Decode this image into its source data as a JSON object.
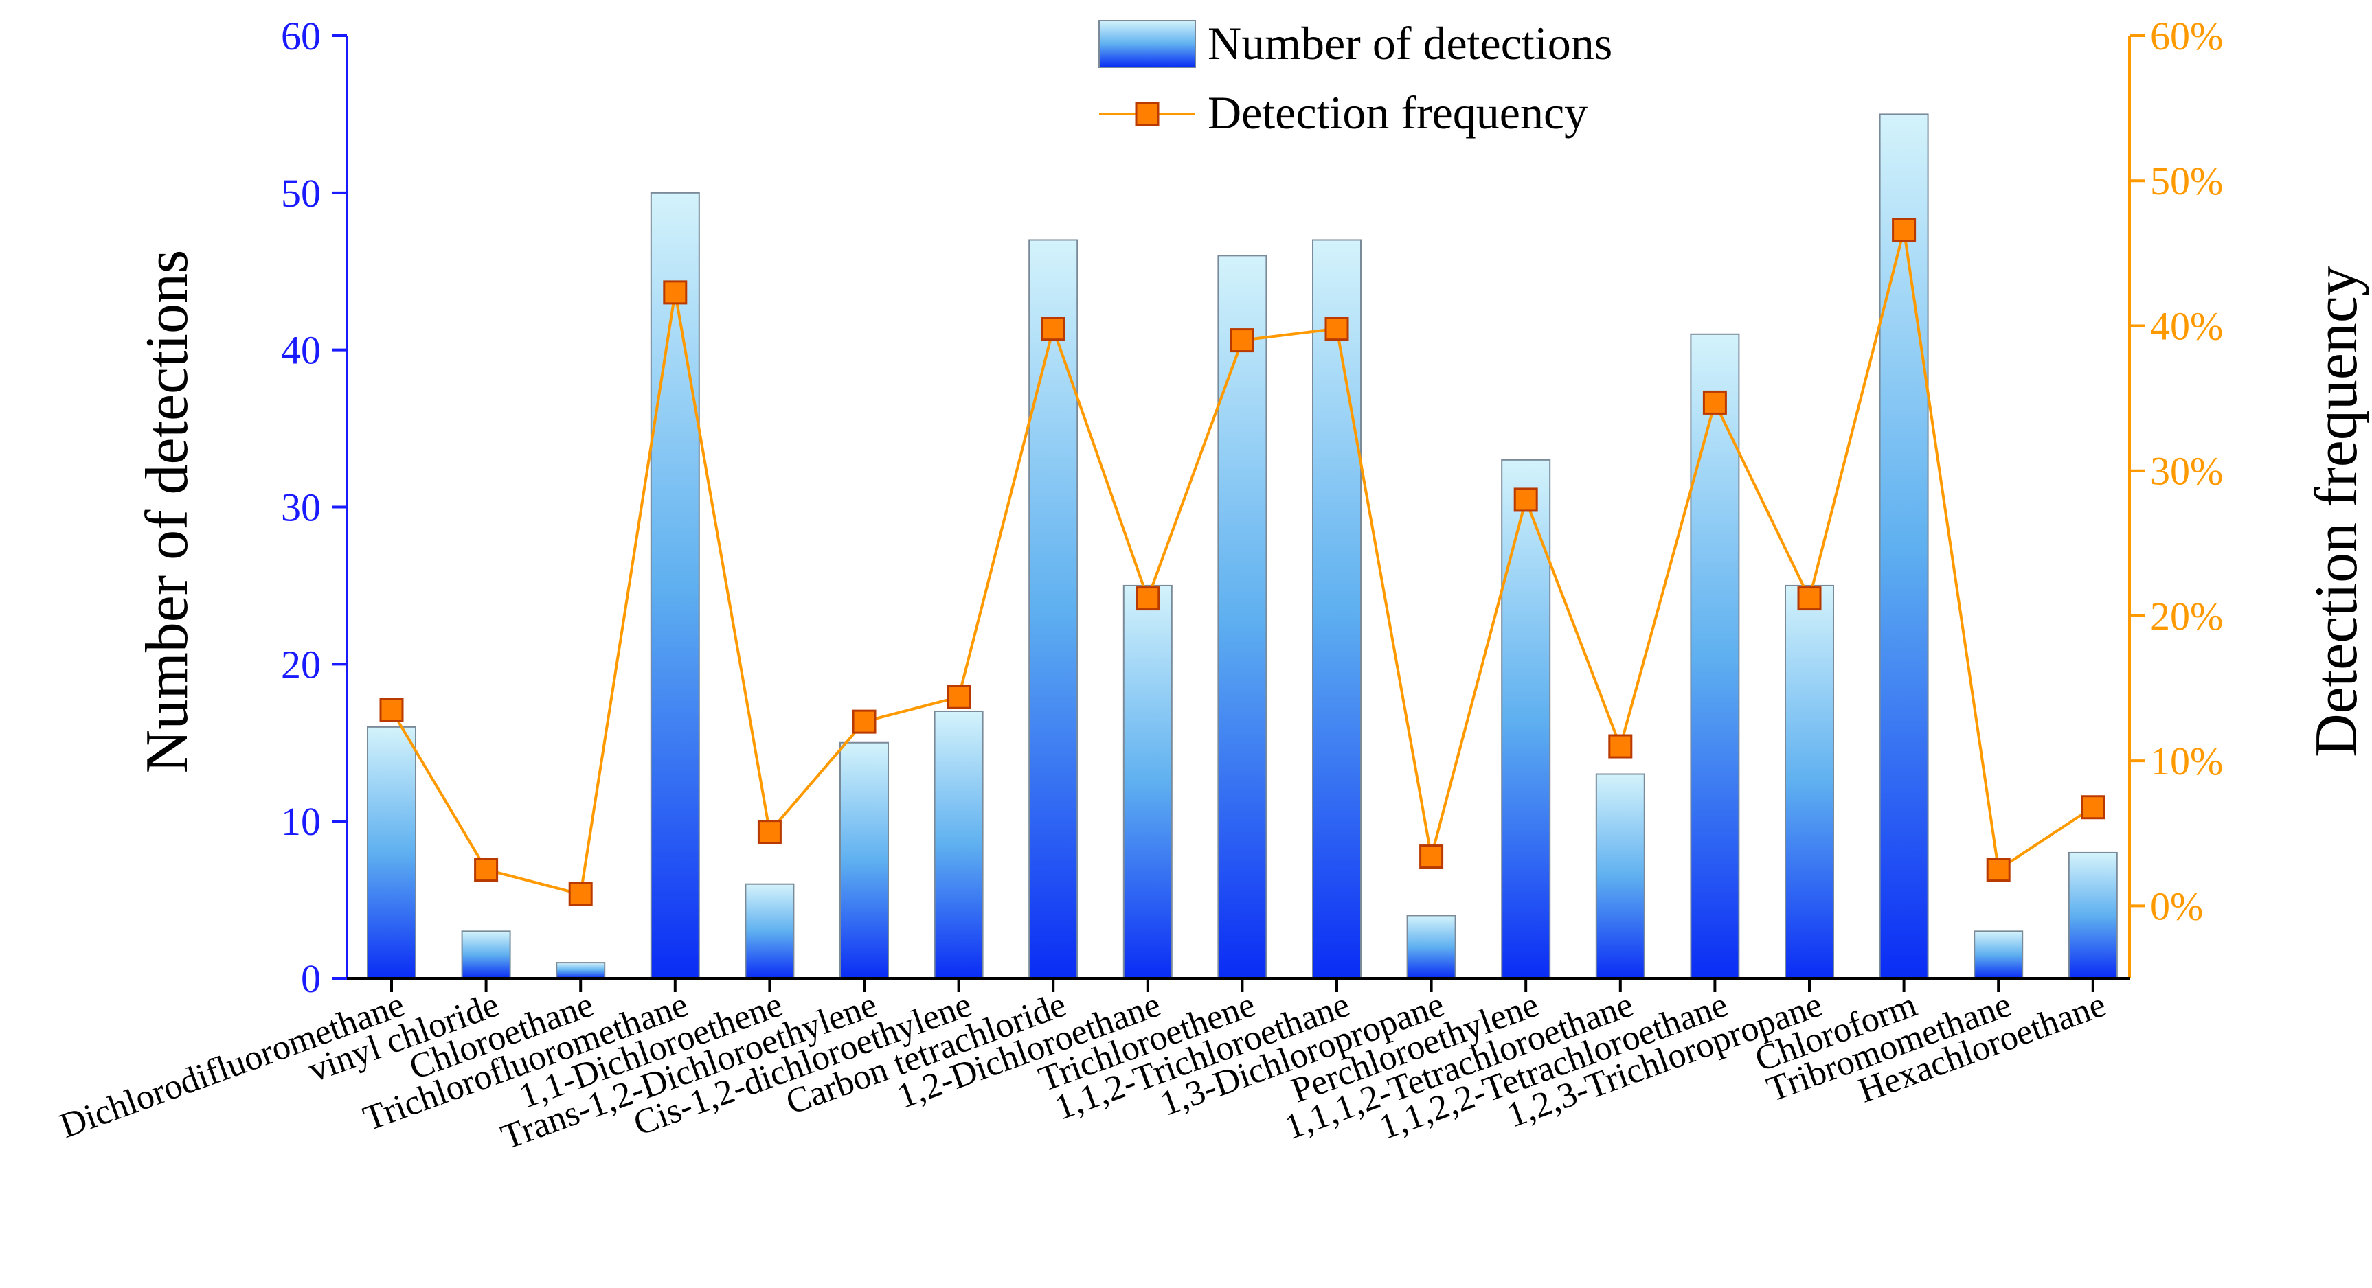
{
  "chart_data": {
    "type": "bar",
    "categories": [
      "Dichlorodifluoromethane",
      "vinyl chloride",
      "Chloroethane",
      "Trichlorofluoromethane",
      "1,1-Dichloroethene",
      "Trans-1,2-Dichloroethylene",
      "Cis-1,2-dichloroethylene",
      "Carbon tetrachloride",
      "1,2-Dichloroethane",
      "Trichloroethene",
      "1,1,2-Trichloroethane",
      "1,3-Dichloropropane",
      "Perchloroethylene",
      "1,1,1,2-Tetrachloroethane",
      "1,1,2,2-Tetrachloroethane",
      "1,2,3-Trichloropropane",
      "Chloroform",
      "Tribromomethane",
      "Hexachloroethane"
    ],
    "series": [
      {
        "name": "Number of detections",
        "type": "bar",
        "axis": "left",
        "values": [
          16,
          3,
          1,
          50,
          6,
          15,
          17,
          47,
          25,
          46,
          47,
          4,
          33,
          13,
          41,
          25,
          55,
          3,
          8
        ]
      },
      {
        "name": "Detection frequency",
        "type": "line",
        "axis": "right",
        "values": [
          13.5,
          2.5,
          0.8,
          42.3,
          5.1,
          12.7,
          14.4,
          39.8,
          21.2,
          39.0,
          39.8,
          3.4,
          28.0,
          11.0,
          34.7,
          21.2,
          46.6,
          2.5,
          6.8
        ]
      }
    ],
    "ylabel": "Number of detections",
    "ylabel_right": "Detection frequency",
    "ylim": [
      0,
      60
    ],
    "yticks": [
      "0",
      "10",
      "20",
      "30",
      "40",
      "50",
      "60"
    ],
    "ylim_right": [
      -5,
      60
    ],
    "yticks_right": [
      "0%",
      "10%",
      "20%",
      "30%",
      "40%",
      "50%",
      "60%"
    ],
    "grid": false,
    "legend_position": "top-center",
    "colors": {
      "bar_top": "#d4f3fb",
      "bar_mid": "#5fb0f0",
      "bar_bottom": "#0a2cf5",
      "bar_edge": "#7a8a99",
      "line": "#ff9900",
      "marker": "#ff7f00",
      "marker_edge": "#b83a00",
      "left_axis": "#1a1aff",
      "right_axis": "#ff9900"
    }
  }
}
